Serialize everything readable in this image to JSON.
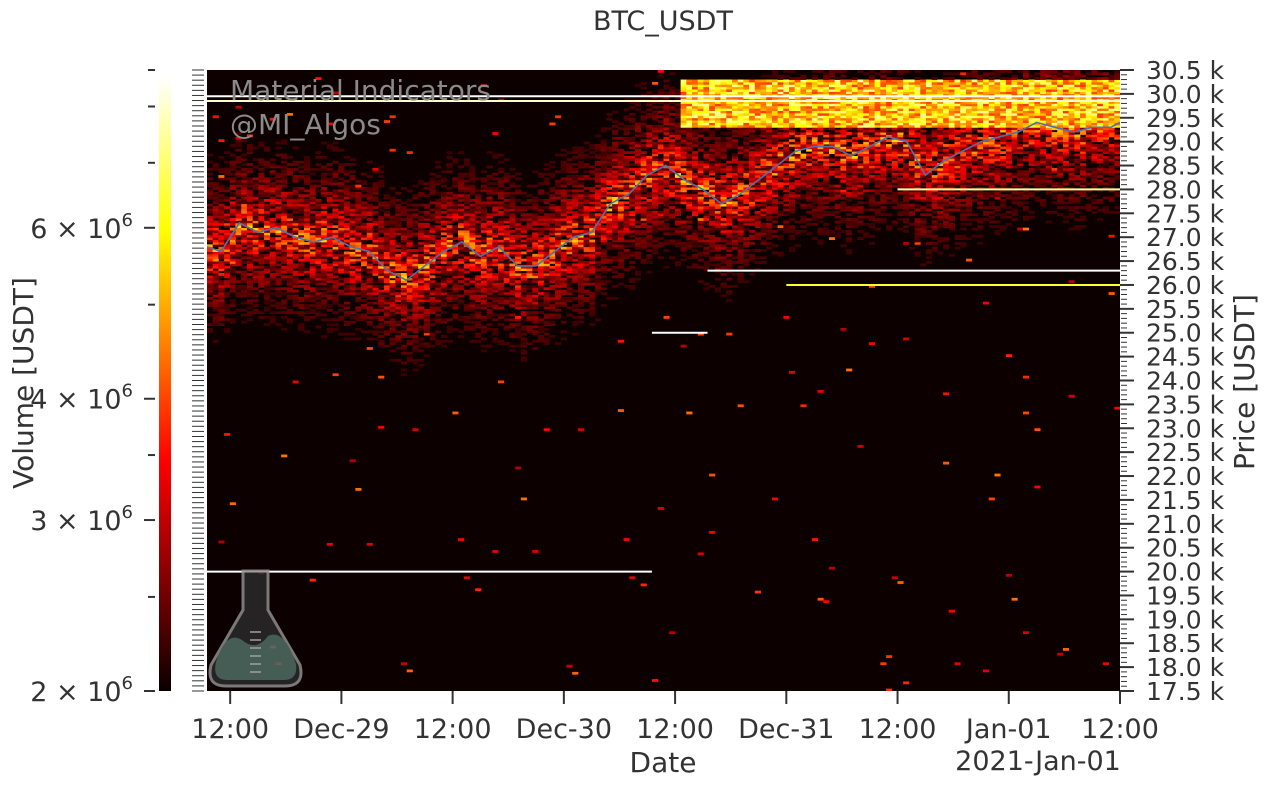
{
  "chart_data": {
    "type": "heatmap",
    "title": "BTC_USDT",
    "xlabel": "Date",
    "ylabel_right": "Price [USDT]",
    "colorbar_label": "Volume [USDT]",
    "colormap": "hot",
    "line_color": "#4c72b0",
    "grid": false,
    "x_ticks": [
      "12:00",
      "Dec-29",
      "12:00",
      "Dec-30",
      "12:00",
      "Dec-31",
      "12:00",
      "Jan-01",
      "12:00"
    ],
    "x_tick_positions_hours": [
      12,
      24,
      36,
      48,
      60,
      72,
      84,
      96,
      108
    ],
    "x_range_hours": [
      9.5,
      108
    ],
    "x_offset_label": "2021-Jan-01",
    "ylim": [
      17500,
      30500
    ],
    "y_ticks": [
      "17.5 k",
      "18.0 k",
      "18.5 k",
      "19.0 k",
      "19.5 k",
      "20.0 k",
      "20.5 k",
      "21.0 k",
      "21.5 k",
      "22.0 k",
      "22.5 k",
      "23.0 k",
      "23.5 k",
      "24.0 k",
      "24.5 k",
      "25.0 k",
      "25.5 k",
      "26.0 k",
      "26.5 k",
      "27.0 k",
      "27.5 k",
      "28.0 k",
      "28.5 k",
      "29.0 k",
      "29.5 k",
      "30.0 k",
      "30.5 k"
    ],
    "y_tick_values": [
      17500,
      18000,
      18500,
      19000,
      19500,
      20000,
      20500,
      21000,
      21500,
      22000,
      22500,
      23000,
      23500,
      24000,
      24500,
      25000,
      25500,
      26000,
      26500,
      27000,
      27500,
      28000,
      28500,
      29000,
      29500,
      30000,
      30500
    ],
    "colorbar_range": [
      2000000,
      8600000
    ],
    "colorbar_ticks": [
      {
        "value": 2000000,
        "mantissa": "2",
        "exp": "6"
      },
      {
        "value": 3000000,
        "mantissa": "3",
        "exp": "6"
      },
      {
        "value": 4000000,
        "mantissa": "4",
        "exp": "6"
      },
      {
        "value": 6000000,
        "mantissa": "6",
        "exp": "6"
      }
    ],
    "price_series": {
      "name": "BTC_USDT",
      "x_hours": [
        9.5,
        11,
        13,
        15,
        17,
        19,
        21,
        23,
        25,
        27,
        29,
        31,
        33,
        35,
        37,
        39,
        41,
        43,
        45,
        47,
        49,
        51,
        53,
        55,
        57,
        59,
        61,
        63,
        65,
        67,
        69,
        71,
        73,
        75,
        77,
        79,
        81,
        83,
        85,
        87,
        89,
        91,
        93,
        95,
        97,
        99,
        101,
        103,
        105,
        107,
        108
      ],
      "y_price": [
        26800,
        26700,
        27300,
        27100,
        27200,
        27000,
        26900,
        27000,
        26800,
        26700,
        26300,
        26100,
        26400,
        26700,
        26900,
        26600,
        26800,
        26400,
        26400,
        26700,
        27000,
        27100,
        27700,
        27900,
        28300,
        28500,
        28200,
        28000,
        27700,
        27900,
        28200,
        28500,
        28800,
        28900,
        28900,
        28700,
        28900,
        29100,
        29000,
        28300,
        28600,
        28800,
        29000,
        29100,
        29200,
        29400,
        29300,
        29200,
        29300,
        29300,
        29400
      ]
    },
    "full_lines": [
      {
        "price": 29950,
        "intensity": 1.0
      },
      {
        "price": 29850,
        "intensity": 0.95
      }
    ],
    "partial_lines": [
      {
        "price": 20000,
        "from_hour": 9.5,
        "to_hour": 57.5,
        "intensity": 1.0
      },
      {
        "price": 25000,
        "from_hour": 57.5,
        "to_hour": 63.5,
        "intensity": 1.0
      },
      {
        "price": 26300,
        "from_hour": 63.5,
        "to_hour": 108,
        "intensity": 1.0
      },
      {
        "price": 28000,
        "from_hour": 84,
        "to_hour": 108,
        "intensity": 0.9
      },
      {
        "price": 26000,
        "from_hour": 72,
        "to_hour": 108,
        "intensity": 0.8
      }
    ]
  },
  "watermark": {
    "line1": "Material Indicators",
    "line2": "@MI_Algos",
    "logo_icon": "flask-icon"
  }
}
